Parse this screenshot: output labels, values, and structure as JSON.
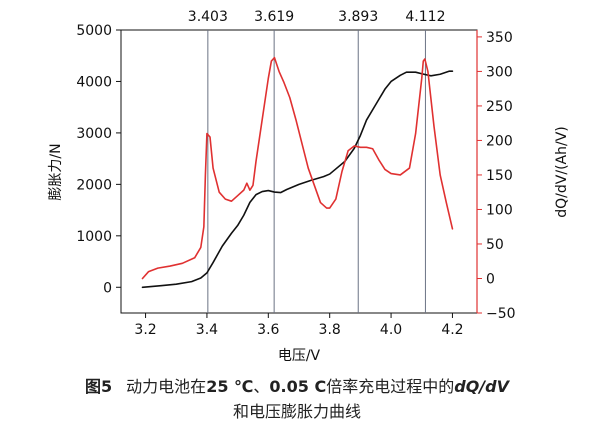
{
  "chart_data": {
    "type": "line",
    "xlabel": "电压/V",
    "ylabel_left": "膨胀力/N",
    "ylabel_right": "dQ/dV/(Ah/V)",
    "xlim": [
      3.12,
      4.28
    ],
    "ylim_left": [
      -500,
      5000
    ],
    "ylim_right": [
      -50,
      360
    ],
    "x_ticks": [
      "3.2",
      "3.4",
      "3.6",
      "3.8",
      "4.0",
      "4.2"
    ],
    "y_left_ticks": [
      "0",
      "1000",
      "2000",
      "3000",
      "4000",
      "5000"
    ],
    "y_right_ticks": [
      "−50",
      "0",
      "50",
      "100",
      "150",
      "200",
      "250",
      "300",
      "350"
    ],
    "y_right_tick_values": [
      -50,
      0,
      50,
      100,
      150,
      200,
      250,
      300,
      350
    ],
    "grid": false,
    "markers": [
      {
        "x": 3.403,
        "label": "3.403"
      },
      {
        "x": 3.619,
        "label": "3.619"
      },
      {
        "x": 3.893,
        "label": "3.893"
      },
      {
        "x": 4.112,
        "label": "4.112"
      }
    ],
    "series": [
      {
        "axis": "left",
        "color": "#111111",
        "points": [
          [
            3.19,
            0
          ],
          [
            3.25,
            30
          ],
          [
            3.3,
            60
          ],
          [
            3.35,
            110
          ],
          [
            3.38,
            180
          ],
          [
            3.4,
            280
          ],
          [
            3.42,
            480
          ],
          [
            3.45,
            800
          ],
          [
            3.48,
            1050
          ],
          [
            3.5,
            1200
          ],
          [
            3.52,
            1400
          ],
          [
            3.54,
            1650
          ],
          [
            3.56,
            1800
          ],
          [
            3.58,
            1860
          ],
          [
            3.6,
            1880
          ],
          [
            3.62,
            1850
          ],
          [
            3.64,
            1840
          ],
          [
            3.66,
            1900
          ],
          [
            3.7,
            2000
          ],
          [
            3.74,
            2080
          ],
          [
            3.78,
            2150
          ],
          [
            3.8,
            2200
          ],
          [
            3.82,
            2300
          ],
          [
            3.85,
            2450
          ],
          [
            3.88,
            2700
          ],
          [
            3.9,
            2950
          ],
          [
            3.92,
            3250
          ],
          [
            3.95,
            3550
          ],
          [
            3.98,
            3850
          ],
          [
            4.0,
            4000
          ],
          [
            4.03,
            4120
          ],
          [
            4.05,
            4180
          ],
          [
            4.08,
            4180
          ],
          [
            4.1,
            4150
          ],
          [
            4.13,
            4110
          ],
          [
            4.16,
            4140
          ],
          [
            4.19,
            4200
          ],
          [
            4.2,
            4200
          ]
        ]
      },
      {
        "axis": "right",
        "color": "#e03131",
        "points": [
          [
            3.19,
            0
          ],
          [
            3.21,
            10
          ],
          [
            3.24,
            15
          ],
          [
            3.28,
            18
          ],
          [
            3.32,
            22
          ],
          [
            3.36,
            30
          ],
          [
            3.38,
            45
          ],
          [
            3.39,
            75
          ],
          [
            3.395,
            150
          ],
          [
            3.4,
            210
          ],
          [
            3.41,
            205
          ],
          [
            3.42,
            160
          ],
          [
            3.44,
            125
          ],
          [
            3.46,
            115
          ],
          [
            3.48,
            112
          ],
          [
            3.5,
            120
          ],
          [
            3.52,
            128
          ],
          [
            3.53,
            138
          ],
          [
            3.54,
            128
          ],
          [
            3.55,
            135
          ],
          [
            3.56,
            170
          ],
          [
            3.58,
            230
          ],
          [
            3.6,
            290
          ],
          [
            3.61,
            315
          ],
          [
            3.62,
            320
          ],
          [
            3.635,
            300
          ],
          [
            3.65,
            285
          ],
          [
            3.67,
            262
          ],
          [
            3.69,
            230
          ],
          [
            3.71,
            195
          ],
          [
            3.73,
            160
          ],
          [
            3.75,
            135
          ],
          [
            3.77,
            110
          ],
          [
            3.79,
            102
          ],
          [
            3.8,
            102
          ],
          [
            3.82,
            115
          ],
          [
            3.84,
            155
          ],
          [
            3.86,
            185
          ],
          [
            3.88,
            192
          ],
          [
            3.9,
            190
          ],
          [
            3.92,
            190
          ],
          [
            3.94,
            188
          ],
          [
            3.96,
            172
          ],
          [
            3.98,
            158
          ],
          [
            4.0,
            152
          ],
          [
            4.03,
            150
          ],
          [
            4.06,
            160
          ],
          [
            4.08,
            210
          ],
          [
            4.1,
            290
          ],
          [
            4.105,
            315
          ],
          [
            4.11,
            318
          ],
          [
            4.12,
            300
          ],
          [
            4.14,
            220
          ],
          [
            4.16,
            150
          ],
          [
            4.18,
            110
          ],
          [
            4.2,
            72
          ]
        ]
      }
    ]
  },
  "caption": {
    "line1_prefix": "图",
    "line1_num": "5",
    "line1_a": "动力电池在",
    "line1_temp": "25 ℃",
    "line1_b": "、",
    "line1_rate": "0.05 C",
    "line1_c": "倍率充电过程中的",
    "line1_dqdv": "dQ/dV",
    "line2": "和电压膨胀力曲线"
  }
}
